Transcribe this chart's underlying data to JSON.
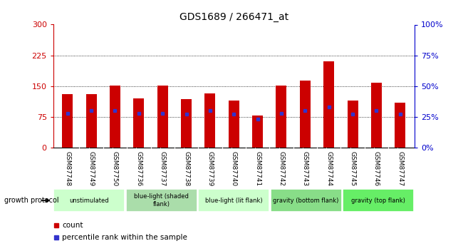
{
  "title": "GDS1689 / 266471_at",
  "samples": [
    "GSM87748",
    "GSM87749",
    "GSM87750",
    "GSM87736",
    "GSM87737",
    "GSM87738",
    "GSM87739",
    "GSM87740",
    "GSM87741",
    "GSM87742",
    "GSM87743",
    "GSM87744",
    "GSM87745",
    "GSM87746",
    "GSM87747"
  ],
  "counts": [
    130,
    130,
    152,
    120,
    152,
    118,
    133,
    115,
    78,
    152,
    163,
    210,
    115,
    158,
    110
  ],
  "percentile_ranks_right": [
    28,
    30,
    30,
    28,
    28,
    27,
    30,
    27,
    23,
    28,
    30,
    33,
    27,
    30,
    27
  ],
  "left_yticks": [
    0,
    75,
    150,
    225,
    300
  ],
  "right_yticks": [
    0,
    25,
    50,
    75,
    100
  ],
  "right_ytick_labels": [
    "0%",
    "25%",
    "50%",
    "75%",
    "100%"
  ],
  "ylim_left": [
    0,
    300
  ],
  "ylim_right": [
    0,
    100
  ],
  "bar_color": "#cc0000",
  "dot_color": "#3333cc",
  "grid_color": "#000000",
  "groups": [
    {
      "label": "unstimulated",
      "start": 0,
      "end": 3
    },
    {
      "label": "blue-light (shaded\nflank)",
      "start": 3,
      "end": 6
    },
    {
      "label": "blue-light (lit flank)",
      "start": 6,
      "end": 9
    },
    {
      "label": "gravity (bottom flank)",
      "start": 9,
      "end": 12
    },
    {
      "label": "gravity (top flank)",
      "start": 12,
      "end": 15
    }
  ],
  "group_display_colors": [
    "#ccffcc",
    "#aaddaa",
    "#ccffcc",
    "#88dd88",
    "#66ee66"
  ],
  "bar_width": 0.45,
  "left_ylabel_color": "#cc0000",
  "right_ylabel_color": "#0000cc",
  "bg_color": "#ffffff",
  "plot_bg_color": "#ffffff",
  "tick_area_bg": "#cccccc",
  "growth_protocol_label": "growth protocol",
  "legend_count_label": "count",
  "legend_pct_label": "percentile rank within the sample",
  "left_tick_color": "#cc0000",
  "right_tick_color": "#0000cc"
}
